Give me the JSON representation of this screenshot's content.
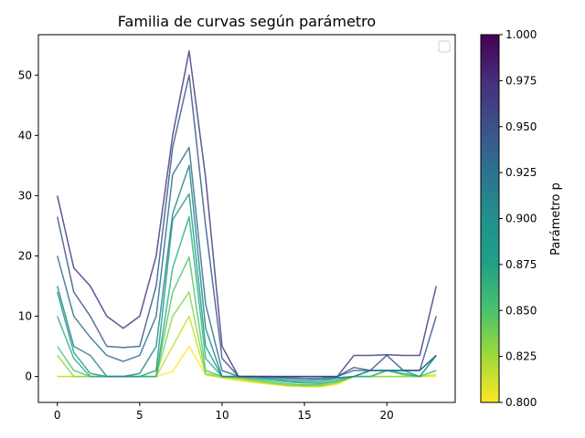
{
  "chart_data": {
    "type": "line",
    "title": "Familia de curvas según parámetro",
    "xlabel": "",
    "ylabel": "",
    "xlim": [
      -1.15,
      24.15
    ],
    "ylim": [
      -4.3,
      56.7
    ],
    "xticks": [
      0,
      5,
      10,
      15,
      20
    ],
    "yticks": [
      0,
      10,
      20,
      30,
      40,
      50
    ],
    "x": [
      0,
      1,
      2,
      3,
      4,
      5,
      6,
      7,
      8,
      9,
      10,
      11,
      12,
      13,
      14,
      15,
      16,
      17,
      18,
      19,
      20,
      21,
      22,
      23
    ],
    "grid": false,
    "legend": {
      "placement": "top-right",
      "entries": []
    },
    "colorbar": {
      "label": "Parámetro p",
      "min": 0.8,
      "max": 1.0,
      "ticks": [
        "0.800",
        "0.825",
        "0.850",
        "0.875",
        "0.900",
        "0.925",
        "0.950",
        "0.975",
        "1.000"
      ],
      "colormap": "viridis"
    },
    "series": [
      {
        "p": 0.8,
        "color": "#fde725",
        "values": [
          0,
          0,
          0,
          0,
          0,
          0,
          0,
          0.8,
          5,
          0.3,
          -0.2,
          -0.7,
          -1,
          -1.3,
          -1.6,
          -1.7,
          -1.7,
          -1.3,
          0,
          0,
          0,
          0,
          0,
          0
        ]
      },
      {
        "p": 0.82,
        "color": "#c2df23",
        "values": [
          0,
          0,
          0,
          0,
          0,
          0,
          0,
          5,
          10,
          0.3,
          -0.2,
          -0.5,
          -0.9,
          -1.2,
          -1.5,
          -1.6,
          -1.6,
          -1.1,
          0,
          0,
          0,
          0,
          0,
          0.3
        ]
      },
      {
        "p": 0.84,
        "color": "#86d549",
        "values": [
          3.5,
          0,
          0,
          0,
          0,
          0,
          0,
          10,
          14,
          0.5,
          0,
          -0.3,
          -0.7,
          -1.1,
          -1.4,
          -1.5,
          -1.5,
          -1,
          0,
          0,
          0,
          0,
          0,
          1
        ]
      },
      {
        "p": 0.86,
        "color": "#52c569",
        "values": [
          5,
          1,
          0,
          0,
          0,
          0,
          0,
          14,
          19.8,
          1,
          0,
          -0.2,
          -0.5,
          -0.9,
          -1.2,
          -1.4,
          -1.3,
          -0.8,
          0,
          0,
          1,
          0.3,
          0,
          1
        ]
      },
      {
        "p": 0.88,
        "color": "#2ab07f",
        "values": [
          10,
          3,
          0,
          0,
          0,
          0,
          0,
          18,
          26.5,
          3,
          0,
          0,
          -0.3,
          -0.6,
          -0.9,
          -1.1,
          -1.1,
          -0.6,
          0,
          0,
          1,
          0.5,
          0,
          3.5
        ]
      },
      {
        "p": 0.9,
        "color": "#1e9b8a",
        "values": [
          14,
          4,
          0.5,
          0,
          0,
          0,
          1,
          26,
          30.3,
          5,
          0,
          0,
          -0.1,
          -0.4,
          -0.7,
          -0.9,
          -0.8,
          -0.3,
          0,
          1,
          1,
          1,
          0,
          3.5
        ]
      },
      {
        "p": 0.92,
        "color": "#25858e",
        "values": [
          15,
          5,
          3.5,
          0,
          0,
          0.5,
          5,
          27,
          35,
          8,
          0,
          0,
          0,
          -0.2,
          -0.4,
          -0.6,
          -0.5,
          -0.2,
          0,
          1,
          1,
          1,
          1,
          3.5
        ]
      },
      {
        "p": 0.94,
        "color": "#2d708e",
        "values": [
          20,
          10,
          6.5,
          3.5,
          2.5,
          3.5,
          10,
          33.5,
          38,
          12,
          1,
          0,
          0,
          0,
          -0.2,
          -0.3,
          -0.3,
          0,
          1,
          1,
          1,
          1,
          1,
          3.5
        ]
      },
      {
        "p": 0.96,
        "color": "#38588c",
        "values": [
          26.5,
          14,
          10,
          5,
          4.8,
          5,
          15,
          38,
          50,
          25,
          3,
          0,
          0,
          0,
          0,
          0,
          0,
          0,
          1.5,
          1,
          3.5,
          1,
          1,
          10
        ]
      },
      {
        "p": 0.98,
        "color": "#453781",
        "values": [
          30,
          18,
          15,
          10,
          8,
          10,
          20,
          40,
          54,
          33,
          5,
          0,
          0,
          0,
          0,
          0,
          0,
          0,
          3.5,
          3.5,
          3.6,
          3.5,
          3.5,
          15
        ]
      }
    ]
  }
}
